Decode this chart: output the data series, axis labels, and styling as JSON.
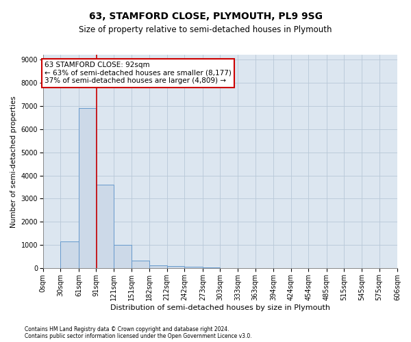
{
  "title": "63, STAMFORD CLOSE, PLYMOUTH, PL9 9SG",
  "subtitle": "Size of property relative to semi-detached houses in Plymouth",
  "xlabel": "Distribution of semi-detached houses by size in Plymouth",
  "ylabel": "Number of semi-detached properties",
  "footnote1": "Contains HM Land Registry data © Crown copyright and database right 2024.",
  "footnote2": "Contains public sector information licensed under the Open Government Licence v3.0.",
  "bar_edges": [
    0,
    30,
    61,
    91,
    121,
    151,
    182,
    212,
    242,
    273,
    303,
    333,
    363,
    394,
    424,
    454,
    485,
    515,
    545,
    575,
    606
  ],
  "bar_heights": [
    0,
    1150,
    6900,
    3600,
    1000,
    320,
    140,
    100,
    80,
    50,
    20,
    10,
    5,
    2,
    1,
    0,
    0,
    0,
    0,
    0
  ],
  "bar_color": "#ccd9e8",
  "bar_edgecolor": "#6699cc",
  "property_size": 92,
  "vline_color": "#cc0000",
  "annotation_line1": "63 STAMFORD CLOSE: 92sqm",
  "annotation_line2": "← 63% of semi-detached houses are smaller (8,177)",
  "annotation_line3": "37% of semi-detached houses are larger (4,809) →",
  "annotation_box_color": "#ffffff",
  "annotation_box_edgecolor": "#cc0000",
  "ylim": [
    0,
    9200
  ],
  "yticks": [
    0,
    1000,
    2000,
    3000,
    4000,
    5000,
    6000,
    7000,
    8000,
    9000
  ],
  "xtick_labels": [
    "0sqm",
    "30sqm",
    "61sqm",
    "91sqm",
    "121sqm",
    "151sqm",
    "182sqm",
    "212sqm",
    "242sqm",
    "273sqm",
    "303sqm",
    "333sqm",
    "363sqm",
    "394sqm",
    "424sqm",
    "454sqm",
    "485sqm",
    "515sqm",
    "545sqm",
    "575sqm",
    "606sqm"
  ],
  "background_color": "#ffffff",
  "plot_bg_color": "#dce6f0",
  "grid_color": "#b8c8d8",
  "title_fontsize": 10,
  "subtitle_fontsize": 8.5,
  "xlabel_fontsize": 8,
  "ylabel_fontsize": 7.5,
  "tick_fontsize": 7,
  "annotation_fontsize": 7.5,
  "footnote_fontsize": 5.5
}
